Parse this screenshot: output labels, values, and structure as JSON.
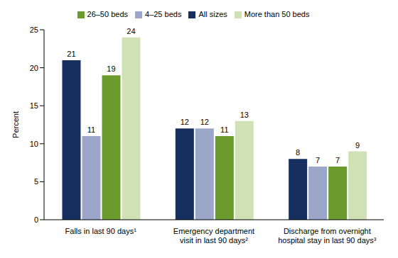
{
  "chart_data": {
    "type": "bar",
    "y_label": "Percent",
    "categories": [
      "Falls in last 90 days¹",
      "Emergency department visit in last 90 days²",
      "Discharge from overnight hospital stay in last 90 days³"
    ],
    "series": [
      {
        "name": "All sizes",
        "color": "#172f5e",
        "values": [
          21,
          12,
          8
        ]
      },
      {
        "name": "4–25 beds",
        "color": "#9ba6c9",
        "values": [
          11,
          12,
          7
        ]
      },
      {
        "name": "26–50 beds",
        "color": "#6b9b2d",
        "values": [
          19,
          11,
          7
        ]
      },
      {
        "name": "More than 50 beds",
        "color": "#d0e1b5",
        "values": [
          24,
          13,
          9
        ]
      }
    ],
    "ylim": [
      0,
      25
    ],
    "yticks": [
      0,
      5,
      10,
      15,
      20,
      25
    ],
    "grid": false,
    "legend": "top",
    "data_labels": true
  }
}
